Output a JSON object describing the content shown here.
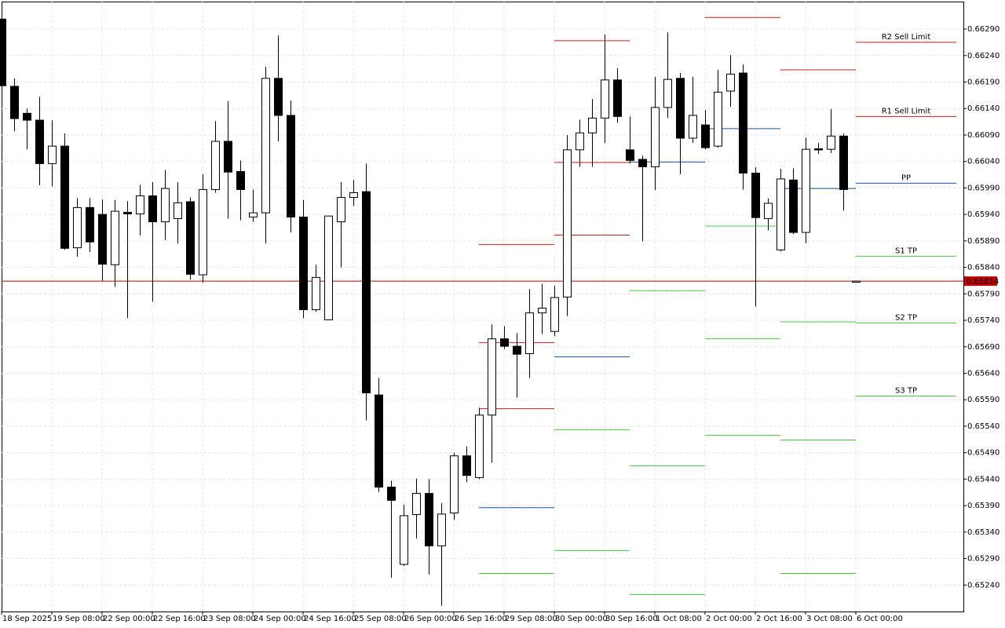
{
  "chart_data": {
    "type": "candlestick",
    "categories": [
      "18 Sep 2025",
      null,
      null,
      null,
      "19 Sep 08:00",
      null,
      null,
      null,
      "22 Sep 00:00",
      null,
      null,
      null,
      "22 Sep 16:00",
      null,
      null,
      null,
      "23 Sep 08:00",
      null,
      null,
      null,
      "24 Sep 00:00",
      null,
      null,
      null,
      "24 Sep 16:00",
      null,
      null,
      null,
      "25 Sep 08:00",
      null,
      null,
      null,
      "26 Sep 00:00",
      null,
      null,
      null,
      "26 Sep 16:00",
      null,
      null,
      null,
      "29 Sep 08:00",
      null,
      null,
      null,
      "30 Sep 00:00",
      null,
      null,
      null,
      "30 Sep 16:00",
      null,
      null,
      null,
      "1 Oct 08:00",
      null,
      null,
      null,
      "2 Oct 00:00",
      null,
      null,
      null,
      "2 Oct 16:00",
      null,
      null,
      null,
      "3 Oct 08:00",
      null,
      null,
      null,
      "6 Oct 00:00"
    ],
    "open": [
      0.66309,
      0.66182,
      0.66131,
      0.66118,
      0.66036,
      0.66069,
      0.65877,
      0.65953,
      0.6594,
      0.65845,
      0.65944,
      0.65941,
      0.65975,
      0.65926,
      0.65932,
      0.65964,
      0.65826,
      0.65987,
      0.66078,
      0.66021,
      0.65935,
      0.65943,
      0.66197,
      0.66127,
      0.65935,
      0.6576,
      0.65741,
      0.65926,
      0.65972,
      0.65983,
      0.65599,
      0.65425,
      0.65279,
      0.65373,
      0.65413,
      0.65314,
      0.65376,
      0.65484,
      0.65443,
      0.65561,
      0.65705,
      0.65691,
      0.65677,
      0.65754,
      0.65719,
      0.65784,
      0.66062,
      0.66094,
      0.66122,
      0.66194,
      0.66062,
      0.66044,
      0.6603,
      0.66142,
      0.66197,
      0.66084,
      0.66109,
      0.66069,
      0.66173,
      0.66207,
      0.66018,
      0.65932,
      0.65873,
      0.66005,
      0.65906,
      0.66064,
      0.66063,
      0.66088,
      0.65814
    ],
    "high": [
      0.66309,
      0.66197,
      0.6614,
      0.66162,
      0.66118,
      0.66093,
      0.65971,
      0.65971,
      0.65968,
      0.65967,
      0.65965,
      0.65996,
      0.66001,
      0.66024,
      0.66001,
      0.65972,
      0.66016,
      0.66116,
      0.66154,
      0.66042,
      0.65987,
      0.66219,
      0.66278,
      0.66155,
      0.65967,
      0.65845,
      0.65937,
      0.66001,
      0.66005,
      0.66036,
      0.65631,
      0.65437,
      0.65392,
      0.65441,
      0.6544,
      0.65395,
      0.6549,
      0.65502,
      0.65575,
      0.65732,
      0.65729,
      0.65716,
      0.65799,
      0.65809,
      0.65805,
      0.6609,
      0.66119,
      0.66158,
      0.6628,
      0.66216,
      0.66125,
      0.66051,
      0.662,
      0.66284,
      0.66207,
      0.662,
      0.66137,
      0.66213,
      0.66241,
      0.66223,
      0.66029,
      0.6597,
      0.66026,
      0.66027,
      0.66085,
      0.66075,
      0.66139,
      0.66093,
      0.65815
    ],
    "low": [
      0.66183,
      0.66097,
      0.66063,
      0.65995,
      0.65993,
      0.65873,
      0.6586,
      0.65869,
      0.65815,
      0.65803,
      0.65744,
      0.659,
      0.65775,
      0.65892,
      0.65885,
      0.65817,
      0.65811,
      0.65981,
      0.65932,
      0.65929,
      0.65926,
      0.65885,
      0.66078,
      0.65906,
      0.65744,
      0.65756,
      0.65741,
      0.6584,
      0.65956,
      0.65551,
      0.65416,
      0.65254,
      0.65276,
      0.65328,
      0.6526,
      0.65201,
      0.65363,
      0.65434,
      0.6544,
      0.65471,
      0.65686,
      0.65594,
      0.65631,
      0.65714,
      0.6571,
      0.65748,
      0.6603,
      0.6603,
      0.66075,
      0.66113,
      0.66036,
      0.65889,
      0.65986,
      0.66122,
      0.66016,
      0.66075,
      0.66063,
      0.66066,
      0.66143,
      0.65987,
      0.65766,
      0.6591,
      0.6587,
      0.65903,
      0.65886,
      0.66054,
      0.66056,
      0.65947,
      0.65813
    ],
    "close": [
      0.66183,
      0.66121,
      0.66118,
      0.66036,
      0.66069,
      0.65876,
      0.65953,
      0.65888,
      0.65846,
      0.65946,
      0.65941,
      0.65975,
      0.65926,
      0.65989,
      0.65962,
      0.65827,
      0.65987,
      0.66078,
      0.6602,
      0.65987,
      0.65943,
      0.66197,
      0.66127,
      0.65935,
      0.6576,
      0.65821,
      0.65937,
      0.65972,
      0.65981,
      0.65603,
      0.65425,
      0.654,
      0.65371,
      0.65413,
      0.65314,
      0.65374,
      0.65484,
      0.65447,
      0.65561,
      0.65705,
      0.65691,
      0.65676,
      0.65754,
      0.65763,
      0.65783,
      0.66062,
      0.66094,
      0.66122,
      0.66194,
      0.66125,
      0.66042,
      0.6603,
      0.66142,
      0.66195,
      0.66084,
      0.66127,
      0.66066,
      0.66171,
      0.66205,
      0.66018,
      0.65934,
      0.65961,
      0.66007,
      0.65906,
      0.66063,
      0.66062,
      0.66088,
      0.65987,
      0.65814
    ],
    "ylim": [
      0.6519,
      0.66342
    ],
    "yticks": [
      {
        "value": 0.6629,
        "label": "0.66290"
      },
      {
        "value": 0.6624,
        "label": "0.66240"
      },
      {
        "value": 0.6619,
        "label": "0.66190"
      },
      {
        "value": 0.6614,
        "label": "0.66140"
      },
      {
        "value": 0.6609,
        "label": "0.66090"
      },
      {
        "value": 0.6604,
        "label": "0.66040"
      },
      {
        "value": 0.6599,
        "label": "0.65990"
      },
      {
        "value": 0.6594,
        "label": "0.65940"
      },
      {
        "value": 0.6589,
        "label": "0.65890"
      },
      {
        "value": 0.6584,
        "label": "0.65840"
      },
      {
        "value": 0.6579,
        "label": "0.65790"
      },
      {
        "value": 0.6574,
        "label": "0.65740"
      },
      {
        "value": 0.6569,
        "label": "0.65690"
      },
      {
        "value": 0.6564,
        "label": "0.65640"
      },
      {
        "value": 0.6559,
        "label": "0.65590"
      },
      {
        "value": 0.6554,
        "label": "0.65540"
      },
      {
        "value": 0.6549,
        "label": "0.65490"
      },
      {
        "value": 0.6544,
        "label": "0.65440"
      },
      {
        "value": 0.6539,
        "label": "0.65390"
      },
      {
        "value": 0.6534,
        "label": "0.65340"
      },
      {
        "value": 0.6529,
        "label": "0.65290"
      },
      {
        "value": 0.6524,
        "label": "0.65240"
      }
    ],
    "grid": true,
    "bull_color": "#ffffff",
    "bear_color": "#000000",
    "current_price": 0.65814,
    "current_price_color": "#c00000",
    "level_colors": {
      "resistance": "#c81e1e",
      "pivot": "#1e50b4",
      "support": "#46c846"
    },
    "pivot_days": [
      {
        "levels": [
          {
            "kind": "resistance",
            "value": 0.65883
          },
          {
            "kind": "resistance",
            "value": 0.65698
          },
          {
            "kind": "resistance",
            "value": 0.65573
          },
          {
            "kind": "pivot",
            "value": 0.65386
          },
          {
            "kind": "support",
            "value": 0.65262
          }
        ]
      },
      {
        "levels": [
          {
            "kind": "resistance",
            "value": 0.66268
          },
          {
            "kind": "resistance",
            "value": 0.66038
          },
          {
            "kind": "resistance",
            "value": 0.65901
          },
          {
            "kind": "pivot",
            "value": 0.65671
          },
          {
            "kind": "support",
            "value": 0.65533
          },
          {
            "kind": "support",
            "value": 0.65305
          }
        ]
      },
      {
        "levels": [
          {
            "kind": "pivot",
            "value": 0.66039
          },
          {
            "kind": "support",
            "value": 0.65796
          },
          {
            "kind": "support",
            "value": 0.65465
          },
          {
            "kind": "support",
            "value": 0.65222
          }
        ]
      },
      {
        "levels": [
          {
            "kind": "resistance",
            "value": 0.66312
          },
          {
            "kind": "pivot",
            "value": 0.66102
          },
          {
            "kind": "support",
            "value": 0.65918
          },
          {
            "kind": "support",
            "value": 0.65705
          },
          {
            "kind": "support",
            "value": 0.65523
          }
        ]
      },
      {
        "levels": [
          {
            "kind": "resistance",
            "value": 0.66213
          },
          {
            "kind": "pivot",
            "value": 0.65989
          },
          {
            "kind": "support",
            "value": 0.65737
          },
          {
            "kind": "support",
            "value": 0.65514
          },
          {
            "kind": "support",
            "value": 0.65262
          }
        ]
      },
      {
        "levels": [
          {
            "kind": "resistance",
            "value": 0.66265,
            "label": "R2 Sell Limit"
          },
          {
            "kind": "resistance",
            "value": 0.66125,
            "label": "R1 Sell Limit"
          },
          {
            "kind": "pivot",
            "value": 0.65999,
            "label": "PP"
          },
          {
            "kind": "support",
            "value": 0.65861,
            "label": "S1 TP"
          },
          {
            "kind": "support",
            "value": 0.65735,
            "label": "S2 TP"
          },
          {
            "kind": "support",
            "value": 0.65597,
            "label": "S3 TP"
          }
        ]
      }
    ]
  }
}
